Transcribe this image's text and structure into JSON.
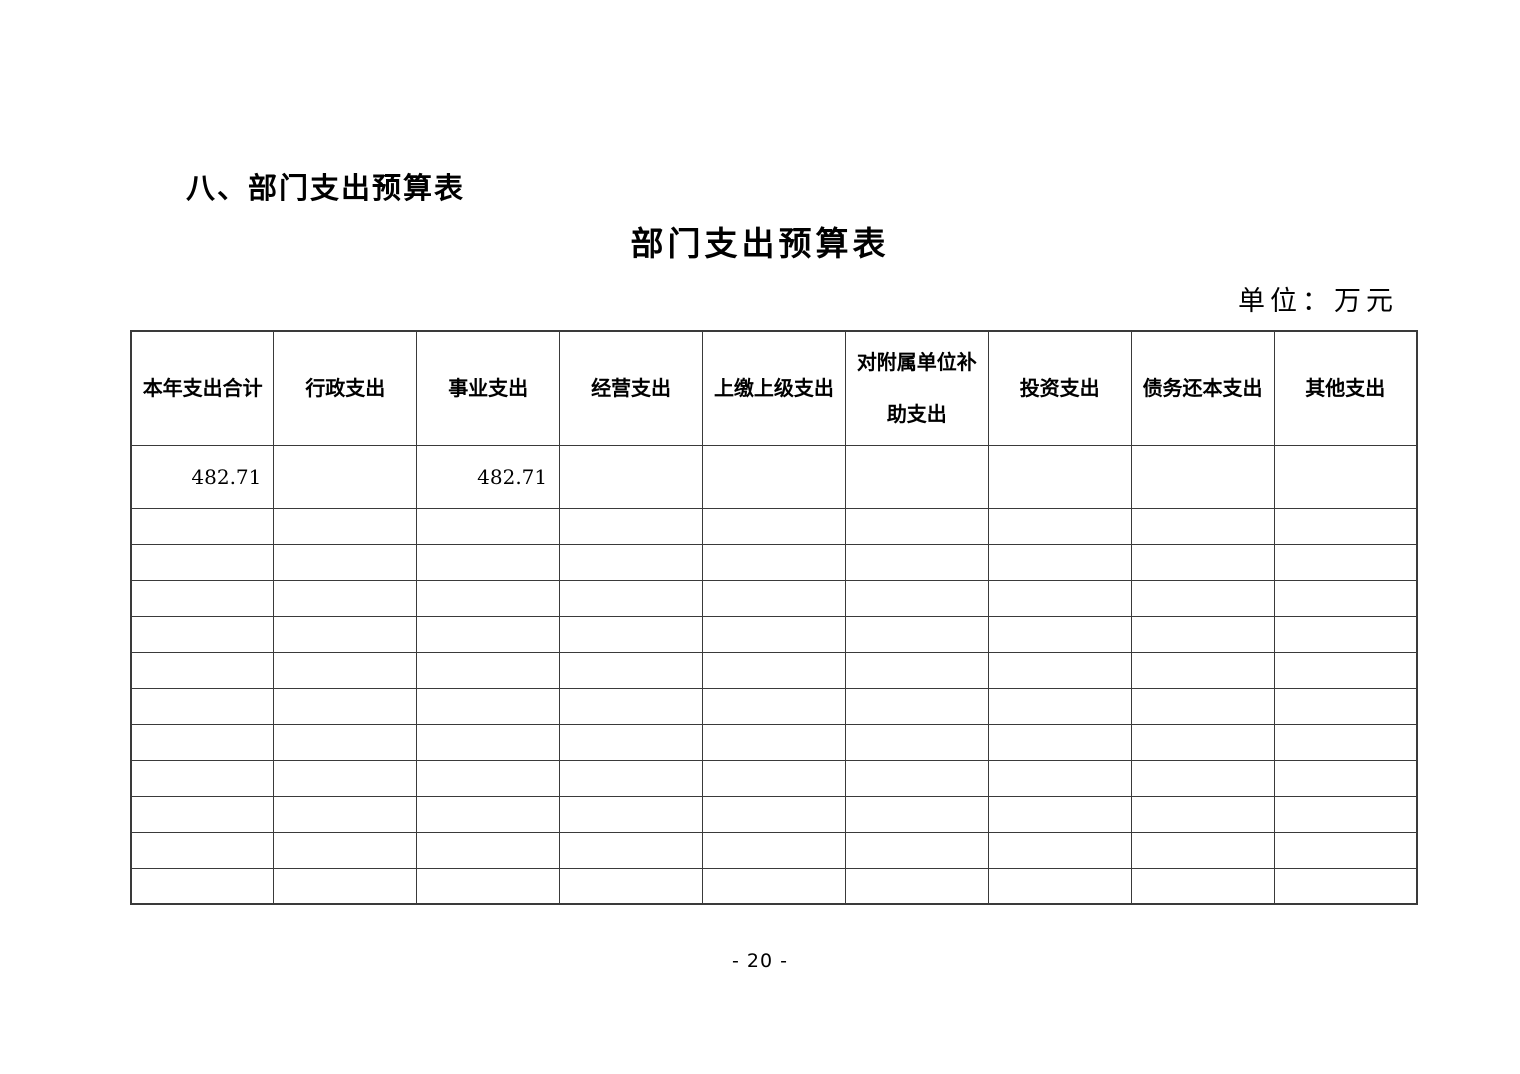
{
  "page": {
    "heading": "八、部门支出预算表",
    "title": "部门支出预算表",
    "unit_label": "单位：万元",
    "page_number": "- 20 -"
  },
  "table": {
    "headers": [
      "本年支出合计",
      "行政支出",
      "事业支出",
      "经营支出",
      "上缴上级支出",
      "对附属单位补助支出",
      "投资支出",
      "债务还本支出",
      "其他支出"
    ],
    "rows": [
      [
        "482.71",
        "",
        "482.71",
        "",
        "",
        "",
        "",
        "",
        ""
      ],
      [
        "",
        "",
        "",
        "",
        "",
        "",
        "",
        "",
        ""
      ],
      [
        "",
        "",
        "",
        "",
        "",
        "",
        "",
        "",
        ""
      ],
      [
        "",
        "",
        "",
        "",
        "",
        "",
        "",
        "",
        ""
      ],
      [
        "",
        "",
        "",
        "",
        "",
        "",
        "",
        "",
        ""
      ],
      [
        "",
        "",
        "",
        "",
        "",
        "",
        "",
        "",
        ""
      ],
      [
        "",
        "",
        "",
        "",
        "",
        "",
        "",
        "",
        ""
      ],
      [
        "",
        "",
        "",
        "",
        "",
        "",
        "",
        "",
        ""
      ],
      [
        "",
        "",
        "",
        "",
        "",
        "",
        "",
        "",
        ""
      ],
      [
        "",
        "",
        "",
        "",
        "",
        "",
        "",
        "",
        ""
      ],
      [
        "",
        "",
        "",
        "",
        "",
        "",
        "",
        "",
        ""
      ],
      [
        "",
        "",
        "",
        "",
        "",
        "",
        "",
        "",
        ""
      ]
    ]
  },
  "colors": {
    "background": "#ffffff",
    "text": "#000000",
    "border": "#3a3a3a"
  }
}
